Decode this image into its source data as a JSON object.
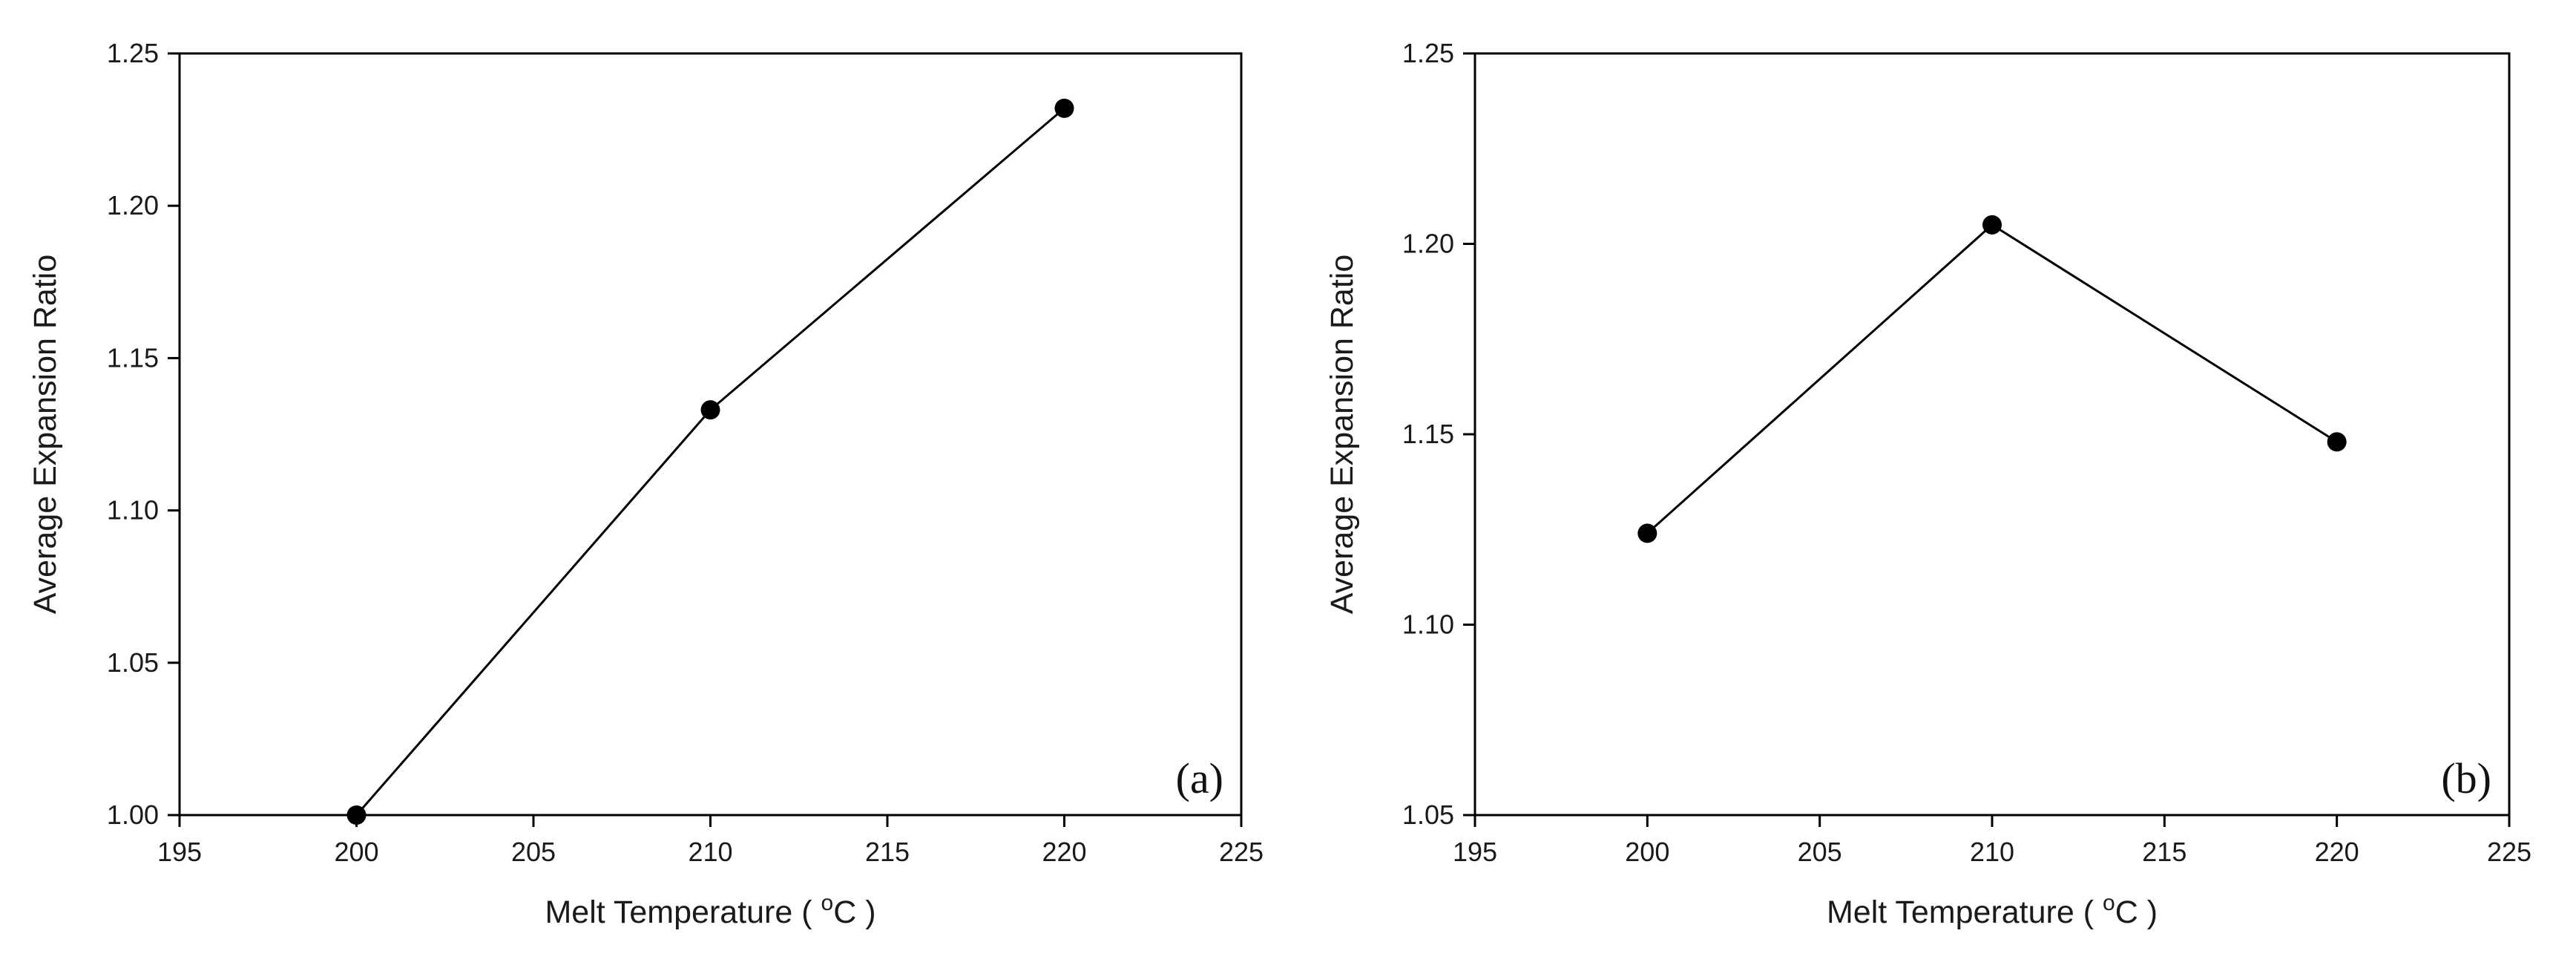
{
  "chart_data": [
    {
      "type": "line",
      "panel_label": "(a)",
      "x": [
        200,
        210,
        220
      ],
      "series": [
        {
          "values": [
            1.0,
            1.133,
            1.232
          ],
          "marker": "circle",
          "color": "#000000"
        }
      ],
      "xlabel": {
        "prefix": "Melt Temperature ( ",
        "sup": "o",
        "suffix": "C )"
      },
      "ylabel": "Average Expansion Ratio",
      "xlim": [
        195,
        225
      ],
      "ylim": [
        1.0,
        1.25
      ],
      "xticks": [
        195,
        200,
        205,
        210,
        215,
        220,
        225
      ],
      "yticks": [
        1.0,
        1.05,
        1.1,
        1.15,
        1.2,
        1.25
      ],
      "xtick_labels": [
        "195",
        "200",
        "205",
        "210",
        "215",
        "220",
        "225"
      ],
      "ytick_labels": [
        "1.00",
        "1.05",
        "1.10",
        "1.15",
        "1.20",
        "1.25"
      ],
      "grid": false,
      "legend": "none",
      "panel_label_position": "bottom-right"
    },
    {
      "type": "line",
      "panel_label": "(b)",
      "x": [
        200,
        210,
        220
      ],
      "series": [
        {
          "values": [
            1.124,
            1.205,
            1.148
          ],
          "marker": "circle",
          "color": "#000000"
        }
      ],
      "xlabel": {
        "prefix": "Melt Temperature ( ",
        "sup": "o",
        "suffix": "C )"
      },
      "ylabel": "Average Expansion Ratio",
      "xlim": [
        195,
        225
      ],
      "ylim": [
        1.05,
        1.25
      ],
      "xticks": [
        195,
        200,
        205,
        210,
        215,
        220,
        225
      ],
      "yticks": [
        1.05,
        1.1,
        1.15,
        1.2,
        1.25
      ],
      "xtick_labels": [
        "195",
        "200",
        "205",
        "210",
        "215",
        "220",
        "225"
      ],
      "ytick_labels": [
        "1.05",
        "1.10",
        "1.15",
        "1.20",
        "1.25"
      ],
      "grid": false,
      "legend": "none",
      "panel_label_position": "bottom-right"
    }
  ]
}
